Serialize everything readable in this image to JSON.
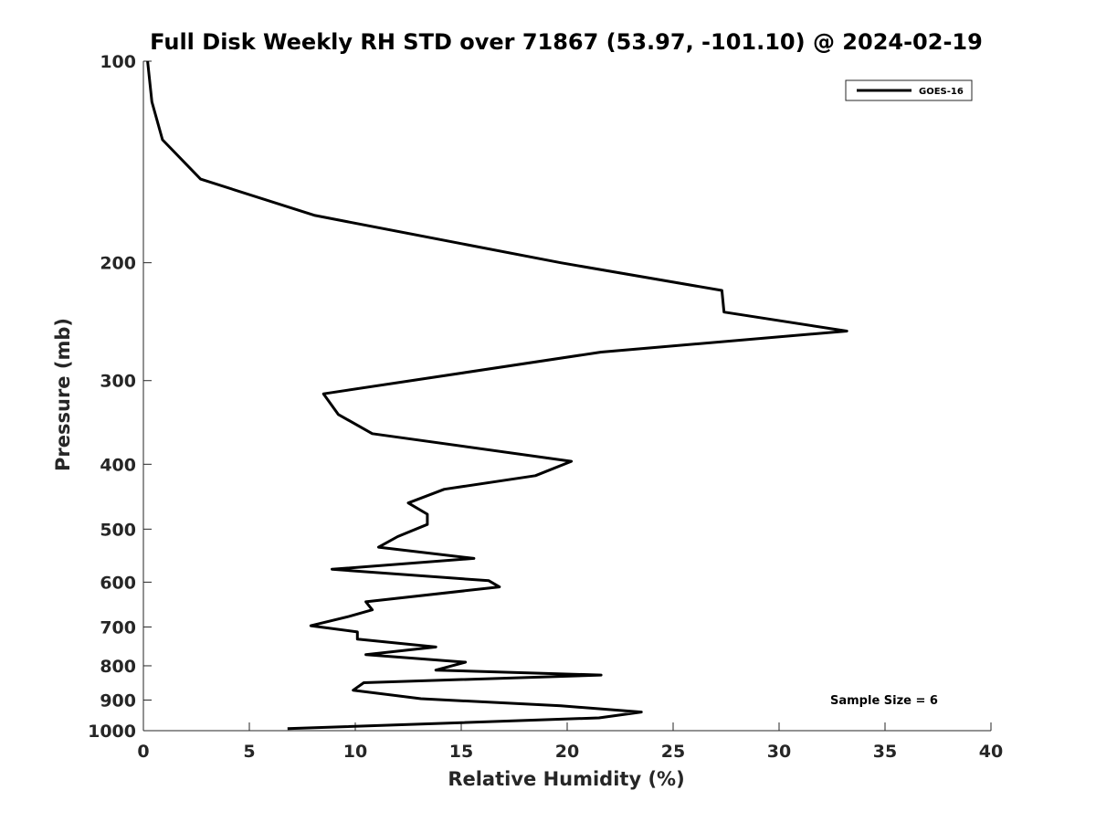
{
  "chart_data": {
    "type": "line",
    "title": "Full Disk Weekly RH STD over 71867 (53.97, -101.10) @ 2024-02-19",
    "xlabel": "Relative Humidity (%)",
    "ylabel": "Pressure (mb)",
    "xlim": [
      0,
      40
    ],
    "ylim": [
      100,
      1000
    ],
    "y_scale": "log",
    "y_reversed": true,
    "x_ticks": [
      0,
      5,
      10,
      15,
      20,
      25,
      30,
      35,
      40
    ],
    "y_ticks": [
      100,
      200,
      300,
      400,
      500,
      600,
      700,
      800,
      900,
      1000
    ],
    "grid": false,
    "legend_position": "top-right",
    "series": [
      {
        "name": "GOES-16",
        "color": "#000000",
        "points": [
          [
            0.2,
            100
          ],
          [
            0.4,
            115
          ],
          [
            0.9,
            131
          ],
          [
            2.7,
            150
          ],
          [
            8.1,
            170
          ],
          [
            19.7,
            200
          ],
          [
            27.3,
            220
          ],
          [
            27.4,
            237
          ],
          [
            33.2,
            253
          ],
          [
            21.6,
            272
          ],
          [
            8.5,
            314
          ],
          [
            9.2,
            337
          ],
          [
            10.8,
            360
          ],
          [
            20.2,
            396
          ],
          [
            18.5,
            416
          ],
          [
            14.2,
            436
          ],
          [
            12.5,
            457
          ],
          [
            13.4,
            475
          ],
          [
            13.4,
            492
          ],
          [
            12.0,
            513
          ],
          [
            11.1,
            532
          ],
          [
            15.6,
            553
          ],
          [
            8.9,
            574
          ],
          [
            16.3,
            597
          ],
          [
            16.8,
            610
          ],
          [
            10.5,
            642
          ],
          [
            10.8,
            660
          ],
          [
            9.7,
            675
          ],
          [
            7.9,
            697
          ],
          [
            10.1,
            712
          ],
          [
            10.1,
            730
          ],
          [
            13.8,
            750
          ],
          [
            10.5,
            770
          ],
          [
            15.2,
            790
          ],
          [
            13.8,
            812
          ],
          [
            21.6,
            826
          ],
          [
            10.4,
            848
          ],
          [
            9.9,
            870
          ],
          [
            13.1,
            896
          ],
          [
            19.7,
            918
          ],
          [
            23.5,
            938
          ],
          [
            21.5,
            957
          ],
          [
            6.8,
            993
          ]
        ]
      }
    ],
    "annotations": [
      "Sample Size = 6"
    ]
  }
}
